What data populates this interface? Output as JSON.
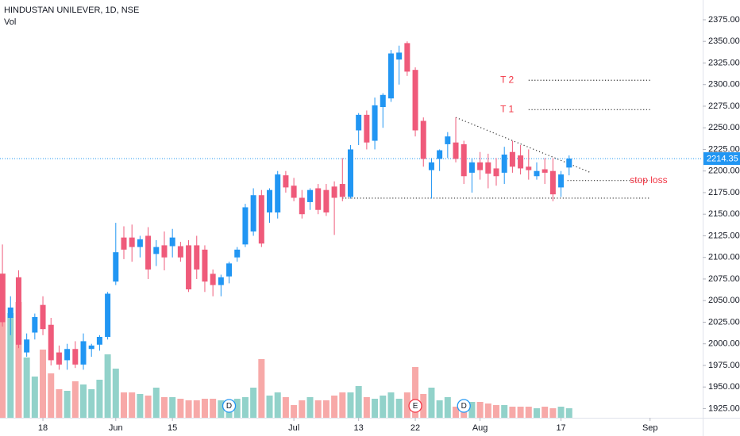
{
  "chart_data": {
    "type": "candlestick",
    "title": "HINDUSTAN UNILEVER, 1D, NSE",
    "volume_label": "Vol",
    "open": [
      2081,
      2030,
      2077,
      1990,
      2013,
      2045,
      2022,
      1990,
      1981,
      1994,
      1976,
      1994,
      1999,
      2008,
      2072,
      2123,
      2123,
      2112,
      2125,
      2104,
      2114,
      2113,
      2113,
      2114,
      2114,
      2109,
      2081,
      2068,
      2078,
      2100,
      2115,
      2130,
      2172,
      2152,
      2152,
      2195,
      2183,
      2169,
      2164,
      2180,
      2178,
      2182,
      2185,
      2170,
      2247,
      2265,
      2235,
      2274,
      2284,
      2329,
      2348,
      2317,
      2258,
      2201,
      2214,
      2231,
      2233,
      2231,
      2198,
      2210,
      2210,
      2203,
      2198,
      2222,
      2218,
      2205,
      2194,
      2202,
      2200,
      2181,
      2204
    ],
    "high": [
      2115,
      2055,
      2085,
      2012,
      2035,
      2055,
      2030,
      1998,
      2000,
      2003,
      2012,
      2000,
      2010,
      2060,
      2140,
      2136,
      2138,
      2125,
      2135,
      2120,
      2130,
      2133,
      2118,
      2120,
      2125,
      2114,
      2086,
      2080,
      2095,
      2112,
      2162,
      2180,
      2178,
      2180,
      2200,
      2200,
      2192,
      2178,
      2180,
      2185,
      2185,
      2188,
      2215,
      2230,
      2267,
      2270,
      2285,
      2290,
      2340,
      2345,
      2350,
      2320,
      2262,
      2215,
      2225,
      2245,
      2262,
      2235,
      2215,
      2222,
      2220,
      2215,
      2228,
      2235,
      2230,
      2225,
      2210,
      2215,
      2215,
      2200,
      2218
    ],
    "low": [
      2020,
      2010,
      1995,
      1985,
      2005,
      2010,
      1975,
      1970,
      1970,
      1972,
      1970,
      1985,
      1992,
      2005,
      2068,
      2098,
      2095,
      2100,
      2075,
      2090,
      2085,
      2100,
      2095,
      2060,
      2075,
      2060,
      2055,
      2055,
      2070,
      2095,
      2112,
      2125,
      2112,
      2140,
      2145,
      2175,
      2165,
      2145,
      2155,
      2150,
      2148,
      2126,
      2165,
      2168,
      2230,
      2225,
      2225,
      2250,
      2280,
      2300,
      2310,
      2240,
      2205,
      2168,
      2200,
      2215,
      2210,
      2185,
      2175,
      2190,
      2180,
      2183,
      2185,
      2198,
      2196,
      2190,
      2190,
      2185,
      2165,
      2170,
      2195
    ],
    "close": [
      2025,
      2042,
      1999,
      2005,
      2031,
      2017,
      1981,
      1976,
      1994,
      1976,
      2003,
      1998,
      2008,
      2058,
      2106,
      2109,
      2112,
      2121,
      2086,
      2112,
      2100,
      2123,
      2100,
      2063,
      2086,
      2072,
      2068,
      2077,
      2093,
      2109,
      2158,
      2172,
      2116,
      2178,
      2196,
      2181,
      2169,
      2150,
      2178,
      2155,
      2152,
      2169,
      2170,
      2225,
      2265,
      2233,
      2276,
      2288,
      2336,
      2337,
      2315,
      2247,
      2214,
      2210,
      2224,
      2240,
      2214,
      2194,
      2210,
      2201,
      2197,
      2194,
      2219,
      2205,
      2203,
      2201,
      2200,
      2198,
      2173,
      2196,
      2214.35
    ],
    "volume": [
      91,
      66,
      73,
      38,
      26,
      43,
      28,
      18,
      17,
      23,
      21,
      18,
      24,
      40,
      31,
      16,
      16,
      15,
      14,
      19,
      13,
      13,
      12,
      11,
      11,
      12,
      12,
      11,
      11,
      12,
      13,
      19,
      37,
      14,
      16,
      13,
      8,
      11,
      13,
      11,
      11,
      14,
      16,
      16,
      20,
      13,
      12,
      14,
      16,
      12,
      16,
      32,
      15,
      19,
      11,
      13,
      7,
      7,
      10,
      10,
      9,
      8,
      8,
      7,
      7,
      7,
      6,
      7,
      6,
      7,
      6
    ],
    "last_price": 2214.35,
    "up_color": "#2196f3",
    "down_color": "#ef5a7a",
    "volume_up_color": "#92d2ca",
    "volume_down_color": "#f7a9a8",
    "ylim": [
      1914.4,
      2397.9
    ],
    "yticks": [
      {
        "value": 1925,
        "label": "1925.00"
      },
      {
        "value": 1950,
        "label": "1950.00"
      },
      {
        "value": 1975,
        "label": "1975.00"
      },
      {
        "value": 2000,
        "label": "2000.00"
      },
      {
        "value": 2025,
        "label": "2025.00"
      },
      {
        "value": 2050,
        "label": "2050.00"
      },
      {
        "value": 2075,
        "label": "2075.00"
      },
      {
        "value": 2100,
        "label": "2100.00"
      },
      {
        "value": 2125,
        "label": "2125.00"
      },
      {
        "value": 2150,
        "label": "2150.00"
      },
      {
        "value": 2175,
        "label": "2175.00"
      },
      {
        "value": 2200,
        "label": "2200.00"
      },
      {
        "value": 2225,
        "label": "2225.00"
      },
      {
        "value": 2250,
        "label": "2250.00"
      },
      {
        "value": 2275,
        "label": "2275.00"
      },
      {
        "value": 2300,
        "label": "2300.00"
      },
      {
        "value": 2325,
        "label": "2325.00"
      },
      {
        "value": 2350,
        "label": "2350.00"
      },
      {
        "value": 2375,
        "label": "2375.00"
      }
    ],
    "y2lim": [
      0,
      100
    ],
    "xlim": [
      -0.3,
      86.5
    ],
    "xticks": [
      {
        "value": 5,
        "label": "18"
      },
      {
        "value": 14,
        "label": "Jun"
      },
      {
        "value": 21,
        "label": "15"
      },
      {
        "value": 36,
        "label": "Jul"
      },
      {
        "value": 44,
        "label": "13"
      },
      {
        "value": 51,
        "label": "22"
      },
      {
        "value": 59,
        "label": "Aug"
      },
      {
        "value": 69,
        "label": "17"
      },
      {
        "value": 80,
        "label": "Sep"
      }
    ],
    "levels": [
      {
        "label": "T 2",
        "value": 2305,
        "x": [
          65,
          80
        ],
        "label_at": 61.5
      },
      {
        "label": "T 1",
        "value": 2271,
        "x": [
          65,
          80
        ],
        "label_at": 61.5
      },
      {
        "label": "stop loss",
        "value": 2189,
        "x": [
          69.8,
          80
        ],
        "label_at": 77.5
      },
      {
        "value": 2168.6,
        "x": [
          42,
          80
        ]
      }
    ],
    "trend": {
      "x": [
        56,
        72.7
      ],
      "y": [
        2262,
        2198
      ]
    },
    "events": [
      {
        "label": "D",
        "x": 28
      },
      {
        "label": "E",
        "x": 51
      },
      {
        "label": "D",
        "x": 57
      }
    ]
  }
}
